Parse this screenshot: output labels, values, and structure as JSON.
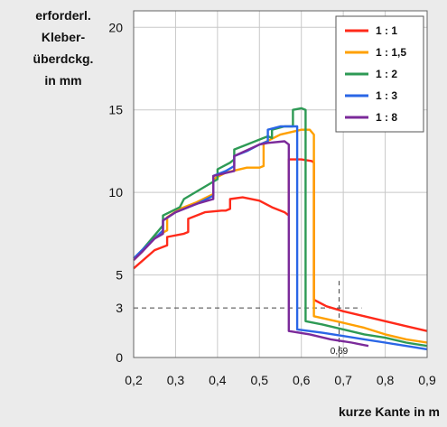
{
  "chart_data": {
    "type": "line",
    "ylabel_lines": [
      "erforderl.",
      "Kleber-",
      "überdckg.",
      "in mm"
    ],
    "xlabel": "kurze Kante in m",
    "xlim": [
      0.2,
      0.9
    ],
    "ylim": [
      0,
      21
    ],
    "xticks": [
      0.2,
      0.3,
      0.4,
      0.5,
      0.6,
      0.7,
      0.8,
      0.9
    ],
    "xtick_labels": [
      "0,2",
      "0,3",
      "0,4",
      "0,5",
      "0,6",
      "0,7",
      "0,8",
      "0,9"
    ],
    "yticks": [
      0,
      5,
      10,
      15,
      20
    ],
    "grid": true,
    "legend_position": "top-right",
    "series": [
      {
        "name": "1 : 1",
        "color": "#ff2a1a",
        "points": [
          [
            0.2,
            5.4
          ],
          [
            0.25,
            6.5
          ],
          [
            0.28,
            6.8
          ],
          [
            0.28,
            7.3
          ],
          [
            0.32,
            7.5
          ],
          [
            0.33,
            7.6
          ],
          [
            0.33,
            8.4
          ],
          [
            0.37,
            8.8
          ],
          [
            0.41,
            8.9
          ],
          [
            0.42,
            8.9
          ],
          [
            0.43,
            9.0
          ],
          [
            0.43,
            9.6
          ],
          [
            0.46,
            9.7
          ],
          [
            0.5,
            9.5
          ],
          [
            0.53,
            9.1
          ],
          [
            0.56,
            8.8
          ],
          [
            0.57,
            8.6
          ],
          [
            0.57,
            12.0
          ],
          [
            0.6,
            12.0
          ],
          [
            0.625,
            11.9
          ],
          [
            0.63,
            11.8
          ],
          [
            0.63,
            3.5
          ],
          [
            0.66,
            3.1
          ],
          [
            0.7,
            2.8
          ],
          [
            0.75,
            2.5
          ],
          [
            0.8,
            2.2
          ],
          [
            0.85,
            1.9
          ],
          [
            0.9,
            1.6
          ]
        ]
      },
      {
        "name": "1 : 1,5",
        "color": "#ffa000",
        "points": [
          [
            0.2,
            5.9
          ],
          [
            0.22,
            6.4
          ],
          [
            0.25,
            7.3
          ],
          [
            0.28,
            7.7
          ],
          [
            0.28,
            8.5
          ],
          [
            0.31,
            9.0
          ],
          [
            0.35,
            9.4
          ],
          [
            0.39,
            9.9
          ],
          [
            0.39,
            10.8
          ],
          [
            0.42,
            11.2
          ],
          [
            0.47,
            11.5
          ],
          [
            0.5,
            11.5
          ],
          [
            0.51,
            11.6
          ],
          [
            0.51,
            13.0
          ],
          [
            0.55,
            13.5
          ],
          [
            0.6,
            13.8
          ],
          [
            0.62,
            13.8
          ],
          [
            0.63,
            13.5
          ],
          [
            0.63,
            2.5
          ],
          [
            0.7,
            2.1
          ],
          [
            0.75,
            1.8
          ],
          [
            0.8,
            1.4
          ],
          [
            0.85,
            1.1
          ],
          [
            0.9,
            0.9
          ]
        ]
      },
      {
        "name": "1 : 2",
        "color": "#2e9a55",
        "points": [
          [
            0.2,
            6.0
          ],
          [
            0.22,
            6.5
          ],
          [
            0.25,
            7.4
          ],
          [
            0.27,
            8.0
          ],
          [
            0.27,
            8.6
          ],
          [
            0.31,
            9.1
          ],
          [
            0.32,
            9.6
          ],
          [
            0.36,
            10.2
          ],
          [
            0.4,
            10.8
          ],
          [
            0.4,
            11.4
          ],
          [
            0.43,
            11.8
          ],
          [
            0.44,
            12.0
          ],
          [
            0.44,
            12.6
          ],
          [
            0.47,
            12.9
          ],
          [
            0.5,
            13.2
          ],
          [
            0.52,
            13.4
          ],
          [
            0.53,
            13.3
          ],
          [
            0.53,
            13.8
          ],
          [
            0.56,
            14.0
          ],
          [
            0.58,
            14.0
          ],
          [
            0.58,
            15.0
          ],
          [
            0.6,
            15.1
          ],
          [
            0.61,
            15.0
          ],
          [
            0.61,
            2.2
          ],
          [
            0.65,
            2.0
          ],
          [
            0.7,
            1.7
          ],
          [
            0.75,
            1.4
          ],
          [
            0.8,
            1.2
          ],
          [
            0.85,
            0.9
          ],
          [
            0.9,
            0.7
          ]
        ]
      },
      {
        "name": "1 : 3",
        "color": "#2a66e6",
        "points": [
          [
            0.2,
            6.0
          ],
          [
            0.22,
            6.5
          ],
          [
            0.25,
            7.2
          ],
          [
            0.27,
            7.7
          ],
          [
            0.27,
            8.3
          ],
          [
            0.3,
            8.8
          ],
          [
            0.35,
            9.3
          ],
          [
            0.39,
            9.8
          ],
          [
            0.39,
            11.0
          ],
          [
            0.42,
            11.3
          ],
          [
            0.44,
            11.6
          ],
          [
            0.44,
            12.2
          ],
          [
            0.47,
            12.5
          ],
          [
            0.5,
            12.9
          ],
          [
            0.52,
            13.1
          ],
          [
            0.52,
            13.8
          ],
          [
            0.55,
            14.0
          ],
          [
            0.59,
            14.0
          ],
          [
            0.59,
            1.7
          ],
          [
            0.65,
            1.5
          ],
          [
            0.7,
            1.3
          ],
          [
            0.75,
            1.1
          ],
          [
            0.8,
            0.9
          ],
          [
            0.85,
            0.7
          ],
          [
            0.9,
            0.5
          ]
        ]
      },
      {
        "name": "1 : 8",
        "color": "#7b2a9a",
        "points": [
          [
            0.2,
            5.9
          ],
          [
            0.22,
            6.4
          ],
          [
            0.25,
            7.2
          ],
          [
            0.27,
            7.5
          ],
          [
            0.27,
            8.3
          ],
          [
            0.3,
            8.8
          ],
          [
            0.35,
            9.3
          ],
          [
            0.39,
            9.6
          ],
          [
            0.39,
            11.0
          ],
          [
            0.44,
            11.3
          ],
          [
            0.44,
            12.2
          ],
          [
            0.5,
            12.9
          ],
          [
            0.52,
            13.0
          ],
          [
            0.56,
            13.1
          ],
          [
            0.57,
            12.9
          ],
          [
            0.57,
            1.6
          ],
          [
            0.62,
            1.4
          ],
          [
            0.67,
            1.1
          ],
          [
            0.72,
            0.9
          ],
          [
            0.76,
            0.7
          ]
        ]
      }
    ],
    "reference": {
      "x": 0.69,
      "y": 3,
      "x_label": "0,69",
      "y_label": "3"
    }
  }
}
